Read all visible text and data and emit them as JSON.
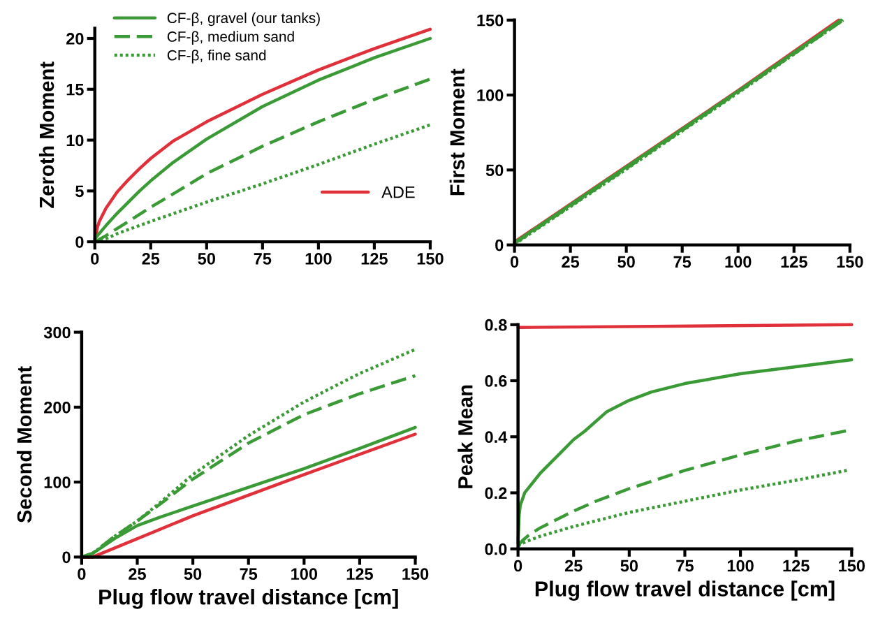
{
  "chart_data": [
    {
      "type": "line",
      "ylabel": "Zeroth Moment",
      "xlim": [
        0,
        150
      ],
      "xticks": [
        0,
        25,
        50,
        75,
        100,
        125,
        150
      ],
      "ylim": [
        0,
        21
      ],
      "yticks": [
        0,
        5,
        10,
        15,
        20
      ],
      "grid": false,
      "legend": "top left",
      "series": [
        {
          "name": "ADE",
          "color": "#e0303a",
          "line_style": "solid",
          "x": [
            0,
            1,
            2,
            5,
            10,
            15,
            20,
            25,
            35,
            50,
            75,
            100,
            125,
            150
          ],
          "values": [
            0,
            1.3,
            2,
            3.3,
            4.9,
            6.1,
            7.2,
            8.2,
            9.9,
            11.8,
            14.5,
            16.9,
            19,
            20.9
          ]
        },
        {
          "name": "CF-β, gravel (our tanks)",
          "color": "#3a9a35",
          "line_style": "solid",
          "x": [
            0,
            5,
            10,
            15,
            20,
            25,
            35,
            50,
            75,
            100,
            125,
            150
          ],
          "values": [
            0.3,
            1.6,
            2.8,
            3.9,
            5,
            6,
            7.8,
            10.1,
            13.3,
            15.9,
            18.1,
            20
          ]
        },
        {
          "name": "CF-β, medium sand",
          "color": "#3a9a35",
          "line_style": "dashed",
          "x": [
            0,
            5,
            10,
            15,
            25,
            35,
            50,
            75,
            100,
            125,
            150
          ],
          "values": [
            0,
            0.6,
            1.3,
            2,
            3.4,
            4.7,
            6.7,
            9.4,
            11.8,
            14,
            16
          ]
        },
        {
          "name": "CF-β, fine sand",
          "color": "#3a9a35",
          "line_style": "dotted",
          "x": [
            0,
            5,
            10,
            25,
            50,
            75,
            100,
            125,
            150
          ],
          "values": [
            0,
            0.3,
            0.8,
            2,
            3.9,
            5.7,
            7.6,
            9.6,
            11.5
          ]
        }
      ]
    },
    {
      "type": "line",
      "ylabel": "First Moment",
      "xlim": [
        0,
        150
      ],
      "xticks": [
        0,
        25,
        50,
        75,
        100,
        125,
        150
      ],
      "ylim": [
        0,
        150
      ],
      "yticks": [
        0,
        50,
        100,
        150
      ],
      "grid": false,
      "series": [
        {
          "color": "#e0303a",
          "line_style": "solid",
          "x": [
            0,
            50,
            100,
            145
          ],
          "values": [
            2,
            52.5,
            103,
            150
          ]
        },
        {
          "color": "#3a9a35",
          "line_style": "solid",
          "x": [
            0,
            50,
            100,
            146
          ],
          "values": [
            1.5,
            52,
            102.5,
            150
          ]
        },
        {
          "color": "#3a9a35",
          "line_style": "dashed",
          "x": [
            0,
            50,
            100,
            147
          ],
          "values": [
            1,
            51,
            102,
            150
          ]
        },
        {
          "color": "#3a9a35",
          "line_style": "dotted",
          "x": [
            0,
            50,
            100,
            147
          ],
          "values": [
            0.5,
            50.5,
            101.5,
            150
          ]
        }
      ]
    },
    {
      "type": "line",
      "xlabel": "Plug flow travel distance [cm]",
      "ylabel": "Second Moment",
      "xlim": [
        0,
        150
      ],
      "xticks": [
        0,
        25,
        50,
        75,
        100,
        125,
        150
      ],
      "ylim": [
        0,
        300
      ],
      "yticks": [
        0,
        100,
        200,
        300
      ],
      "grid": false,
      "series": [
        {
          "color": "#e0303a",
          "line_style": "solid",
          "x": [
            0,
            5,
            50,
            100,
            150
          ],
          "values": [
            0,
            0,
            55,
            110,
            164
          ]
        },
        {
          "color": "#3a9a35",
          "line_style": "solid",
          "x": [
            0,
            5,
            15,
            25,
            35,
            50,
            75,
            100,
            125,
            150
          ],
          "values": [
            0,
            5,
            25,
            42,
            53,
            68,
            93,
            118,
            145,
            173
          ]
        },
        {
          "color": "#3a9a35",
          "line_style": "dashed",
          "x": [
            0,
            5,
            15,
            25,
            35,
            50,
            75,
            100,
            125,
            150
          ],
          "values": [
            0,
            5,
            28,
            48,
            70,
            104,
            152,
            190,
            218,
            242
          ]
        },
        {
          "color": "#3a9a35",
          "line_style": "dotted",
          "x": [
            0,
            5,
            15,
            25,
            35,
            50,
            75,
            100,
            125,
            150
          ],
          "values": [
            0,
            5,
            28,
            48,
            72,
            110,
            162,
            207,
            245,
            277
          ]
        }
      ]
    },
    {
      "type": "line",
      "xlabel": "Plug flow travel distance [cm]",
      "ylabel": "Peak Mean",
      "xlim": [
        0,
        150
      ],
      "xticks": [
        0,
        25,
        50,
        75,
        100,
        125,
        150
      ],
      "ylim": [
        0,
        0.8
      ],
      "yticks": [
        {
          "value": 0,
          "label": "0.0"
        },
        0.2,
        0.4,
        0.6,
        0.8
      ],
      "grid": false,
      "series": [
        {
          "color": "#e0303a",
          "line_style": "solid",
          "x": [
            0,
            150
          ],
          "values": [
            0.79,
            0.8
          ]
        },
        {
          "color": "#3a9a35",
          "line_style": "solid",
          "x": [
            0,
            0.5,
            1,
            3,
            5,
            10,
            15,
            20,
            25,
            30,
            40,
            50,
            60,
            75,
            100,
            125,
            150
          ],
          "values": [
            0.02,
            0.12,
            0.155,
            0.2,
            0.22,
            0.27,
            0.31,
            0.35,
            0.39,
            0.42,
            0.49,
            0.53,
            0.56,
            0.59,
            0.625,
            0.65,
            0.675
          ]
        },
        {
          "color": "#3a9a35",
          "line_style": "dashed",
          "x": [
            0,
            2,
            5,
            10,
            15,
            25,
            35,
            50,
            75,
            100,
            125,
            150
          ],
          "values": [
            0.01,
            0.03,
            0.05,
            0.075,
            0.095,
            0.135,
            0.17,
            0.215,
            0.28,
            0.335,
            0.385,
            0.425
          ]
        },
        {
          "color": "#3a9a35",
          "line_style": "dotted",
          "x": [
            0,
            2,
            5,
            10,
            25,
            50,
            75,
            100,
            125,
            148
          ],
          "values": [
            0.01,
            0.02,
            0.03,
            0.045,
            0.08,
            0.13,
            0.17,
            0.21,
            0.245,
            0.28
          ]
        }
      ]
    }
  ]
}
